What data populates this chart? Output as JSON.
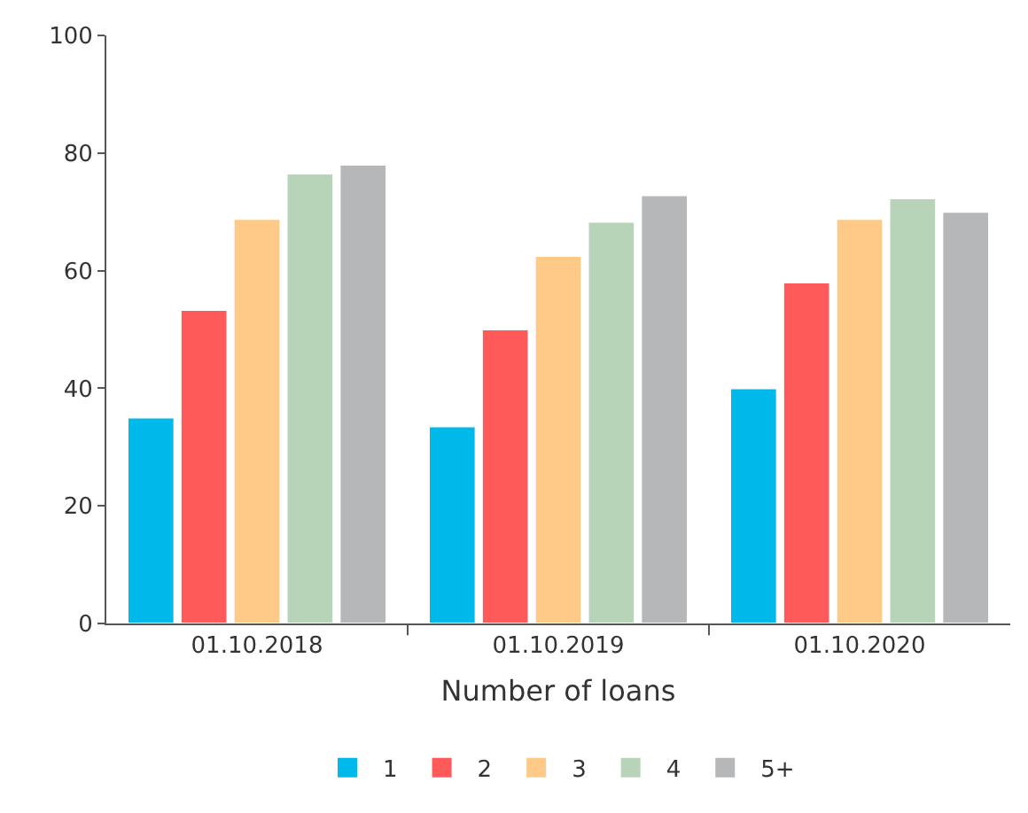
{
  "chart_data": {
    "type": "bar",
    "xlabel": "Number of loans",
    "categories": [
      "01.10.2018",
      "01.10.2019",
      "01.10.2020"
    ],
    "series": [
      {
        "name": "1",
        "color": "#00b9eb",
        "values": [
          35,
          33.5,
          40
        ]
      },
      {
        "name": "2",
        "color": "#ff5a5a",
        "values": [
          53.3,
          50,
          58
        ]
      },
      {
        "name": "3",
        "color": "#ffc987",
        "values": [
          68.8,
          62.5,
          68.8
        ]
      },
      {
        "name": "4",
        "color": "#b8d4b8",
        "values": [
          76.5,
          68.3,
          72.3
        ]
      },
      {
        "name": "5+",
        "color": "#b6b7b9",
        "values": [
          78,
          72.8,
          70
        ]
      }
    ],
    "ylim": [
      0,
      100
    ],
    "yticks": [
      0,
      20,
      40,
      60,
      80,
      100
    ],
    "legend": "bottom"
  }
}
